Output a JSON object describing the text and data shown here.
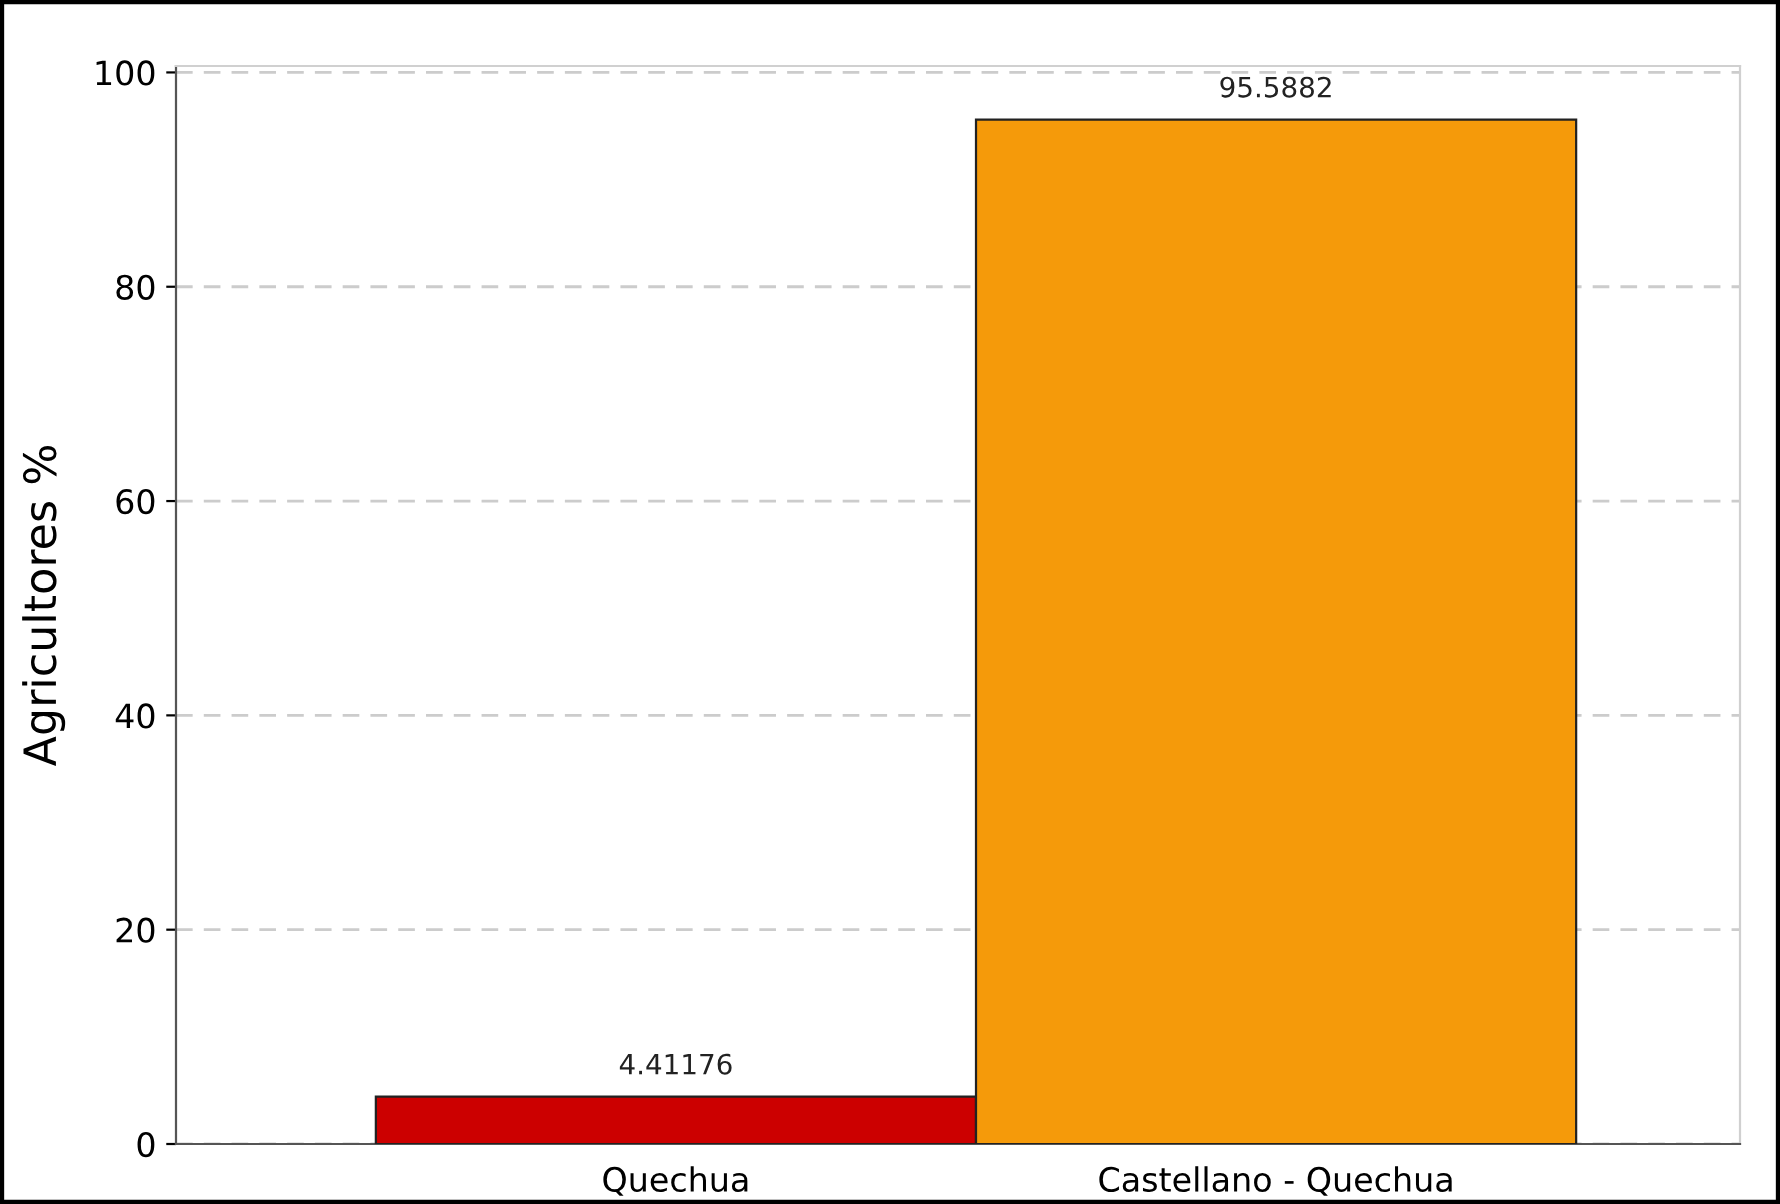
{
  "chart_data": {
    "type": "bar",
    "ylabel": "Agricultores %",
    "categories": [
      "Quechua",
      "Castellano - Quechua"
    ],
    "values": [
      4.41176,
      95.5882
    ],
    "colors": [
      "#cc0000",
      "#f59a0a"
    ],
    "data_labels": true,
    "ylim": [
      0,
      100.6
    ],
    "yticks": [
      0,
      20,
      40,
      60,
      80,
      100
    ],
    "grid": "y"
  }
}
